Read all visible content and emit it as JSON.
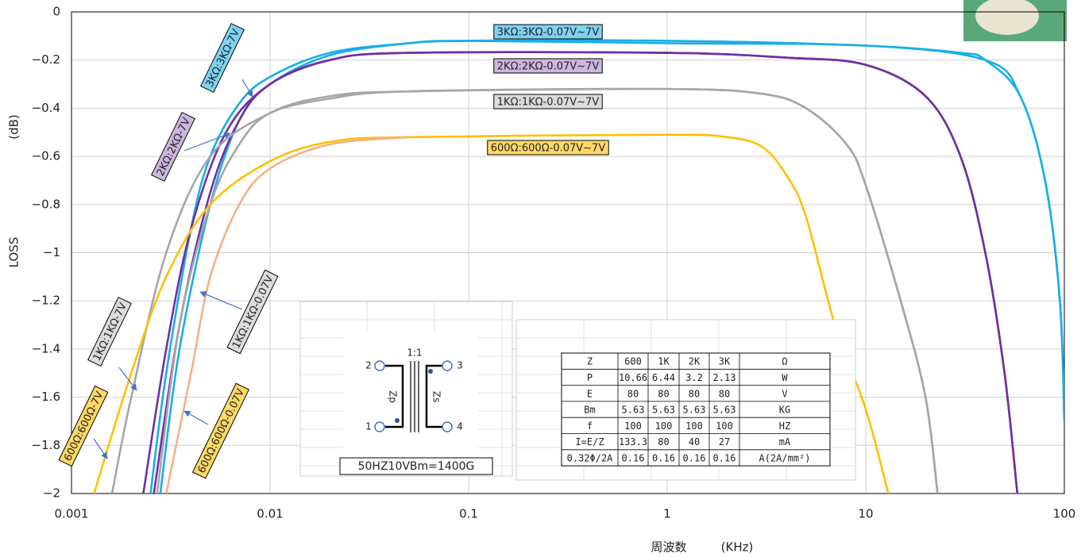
{
  "chart_data": {
    "type": "line",
    "x_log": true,
    "grid": true,
    "xlabel": "周波数",
    "xlabel_unit": "(KHz)",
    "ylabel": "LOSS",
    "ylabel_unit": "(dB)",
    "xlim": [
      0.001,
      100
    ],
    "xticks": [
      0.001,
      0.01,
      0.1,
      1,
      10,
      100
    ],
    "ylim": [
      -2,
      0
    ],
    "yticks": [
      {
        "value": -2,
        "label": "−2"
      },
      {
        "value": -1.8,
        "label": "−1.8"
      },
      {
        "value": -1.6,
        "label": "−1.6"
      },
      {
        "value": -1.4,
        "label": "−1.4"
      },
      {
        "value": -1.2,
        "label": "−1.2"
      },
      {
        "value": -1,
        "label": "−1"
      },
      {
        "value": -0.8,
        "label": "−0.8"
      },
      {
        "value": -0.6,
        "label": "−0.6"
      },
      {
        "value": -0.4,
        "label": "−0.4"
      },
      {
        "value": -0.2,
        "label": "−0.2"
      },
      0
    ],
    "series": [
      {
        "color": "#19aee6",
        "x": [
          0.0025,
          0.003,
          0.004,
          0.005,
          0.007,
          0.01,
          0.02,
          0.05,
          0.1,
          1,
          10,
          30,
          40,
          60,
          80,
          95,
          100
        ],
        "values": [
          -2,
          -1.5,
          -0.9,
          -0.6,
          -0.38,
          -0.27,
          -0.17,
          -0.13,
          -0.12,
          -0.12,
          -0.14,
          -0.17,
          -0.2,
          -0.35,
          -0.7,
          -1.2,
          -1.7
        ]
      },
      {
        "color": "#19aee6",
        "x": [
          0.0028,
          0.0035,
          0.005,
          0.007,
          0.01,
          0.02,
          0.05,
          0.1,
          1,
          10,
          40,
          60,
          80,
          95,
          100
        ],
        "values": [
          -2,
          -1.4,
          -0.8,
          -0.45,
          -0.3,
          -0.18,
          -0.13,
          -0.12,
          -0.13,
          -0.14,
          -0.2,
          -0.35,
          -0.7,
          -1.2,
          -1.7
        ]
      },
      {
        "color": "#7030a0",
        "x": [
          0.0023,
          0.003,
          0.004,
          0.006,
          0.01,
          0.02,
          0.05,
          1,
          4,
          10,
          20,
          30,
          40,
          50,
          58
        ],
        "values": [
          -2,
          -1.4,
          -0.9,
          -0.5,
          -0.3,
          -0.2,
          -0.17,
          -0.17,
          -0.19,
          -0.22,
          -0.35,
          -0.6,
          -1,
          -1.5,
          -2
        ]
      },
      {
        "color": "#7030a0",
        "x": [
          0.0026,
          0.0035,
          0.005,
          0.007,
          0.01,
          0.02,
          0.05,
          1,
          4,
          10,
          20,
          30,
          40,
          50,
          58
        ],
        "values": [
          -2,
          -1.3,
          -0.75,
          -0.45,
          -0.3,
          -0.2,
          -0.17,
          -0.17,
          -0.19,
          -0.22,
          -0.35,
          -0.6,
          -1,
          -1.5,
          -2
        ]
      },
      {
        "color": "#a6a6a6",
        "x": [
          0.0016,
          0.002,
          0.003,
          0.005,
          0.01,
          0.02,
          0.05,
          1,
          3,
          5,
          8,
          10,
          15,
          20,
          23
        ],
        "values": [
          -2,
          -1.6,
          -1,
          -0.6,
          -0.42,
          -0.35,
          -0.33,
          -0.32,
          -0.34,
          -0.4,
          -0.55,
          -0.72,
          -1.2,
          -1.6,
          -2
        ]
      },
      {
        "color": "#a6a6a6",
        "x": [
          0.0027,
          0.0035,
          0.005,
          0.007,
          0.01,
          0.02,
          0.05,
          1,
          3,
          5,
          8,
          10,
          15,
          20,
          23
        ],
        "values": [
          -2,
          -1.3,
          -0.8,
          -0.55,
          -0.42,
          -0.36,
          -0.33,
          -0.32,
          -0.34,
          -0.4,
          -0.55,
          -0.72,
          -1.2,
          -1.6,
          -2
        ]
      },
      {
        "color": "#ffc000",
        "x": [
          0.0013,
          0.002,
          0.003,
          0.005,
          0.01,
          0.02,
          0.05,
          1,
          2,
          3,
          4,
          5,
          7,
          10,
          13
        ],
        "values": [
          -2,
          -1.5,
          -1.1,
          -0.8,
          -0.62,
          -0.54,
          -0.52,
          -0.51,
          -0.52,
          -0.56,
          -0.68,
          -0.85,
          -1.3,
          -1.65,
          -2
        ]
      },
      {
        "color": "#f4b183",
        "x": [
          0.003,
          0.004,
          0.005,
          0.007,
          0.01,
          0.02,
          0.05
        ],
        "values": [
          -2,
          -1.5,
          -1.1,
          -0.8,
          -0.65,
          -0.55,
          -0.52
        ]
      }
    ],
    "annotations": [
      {
        "text": "3KΩ:3KΩ-0.07V~7V",
        "color": "#7fd3f2"
      },
      {
        "text": "2KΩ:2KΩ-0.07V~7V",
        "color": "#cdb6df"
      },
      {
        "text": "1KΩ:1KΩ-0.07V~7V",
        "color": "#dcdcdc"
      },
      {
        "text": "600Ω:600Ω-0.07V~7V",
        "color": "#ffd966"
      },
      {
        "text": "3KΩ:3KΩ-7V",
        "color": "#7fd3f2"
      },
      {
        "text": "2KΩ:2KΩ-7V",
        "color": "#cdb6df"
      },
      {
        "text": "1KΩ:1KΩ-0.07V",
        "color": "#dcdcdc"
      },
      {
        "text": "1KΩ:1KΩ-7V",
        "color": "#dcdcdc"
      },
      {
        "text": "600Ω:600Ω-7V",
        "color": "#ffd966"
      },
      {
        "text": "600Ω:600Ω-0.07V",
        "color": "#ffd966"
      }
    ]
  },
  "schematic": {
    "ratio": "1:1",
    "pins": [
      "2",
      "3",
      "1",
      "4"
    ],
    "primary": "Zp",
    "secondary": "Zs",
    "note": "50HZ10VBm=1400G"
  },
  "table": {
    "rows": [
      [
        "Z",
        "600",
        "1K",
        "2K",
        "3K",
        "Ω"
      ],
      [
        "P",
        "10.66",
        "6.44",
        "3.2",
        "2.13",
        "W"
      ],
      [
        "E",
        "80",
        "80",
        "80",
        "80",
        "V"
      ],
      [
        "Bm",
        "5.63",
        "5.63",
        "5.63",
        "5.63",
        "KG"
      ],
      [
        "f",
        "100",
        "100",
        "100",
        "100",
        "HZ"
      ],
      [
        "I=E/Z",
        "133.3",
        "80",
        "40",
        "27",
        "mA"
      ],
      [
        "0.32Φ/2A",
        "0.16",
        "0.16",
        "0.16",
        "0.16",
        "A(2A/mm²)"
      ]
    ]
  }
}
